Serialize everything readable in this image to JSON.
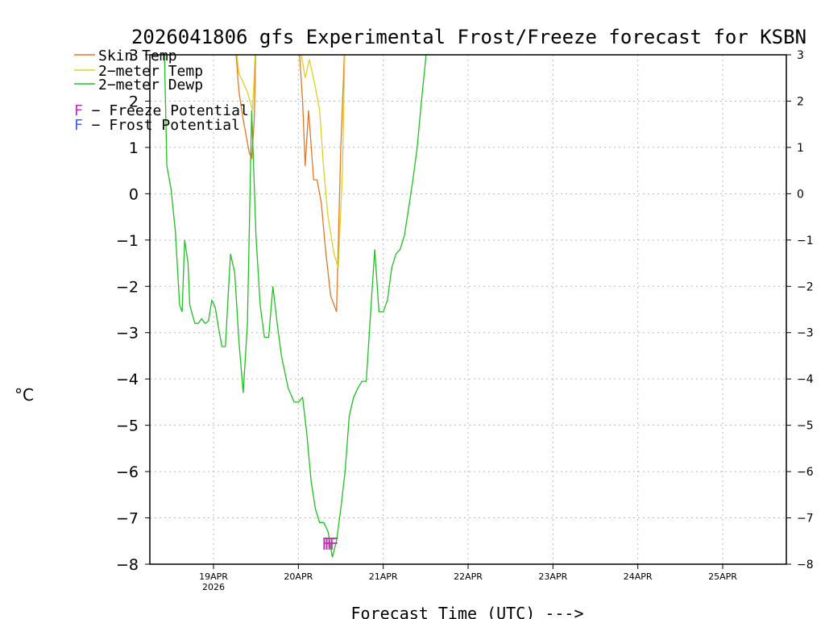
{
  "chart_data": {
    "type": "line",
    "title": "2026041806 gfs Experimental Frost/Freeze forecast for KSBN",
    "ylabel": "°C",
    "xlabel": "Forecast Time (UTC) --->",
    "ylim": [
      -8,
      3
    ],
    "xlim_days": [
      18.25,
      25.75
    ],
    "y_ticks": [
      3,
      2,
      1,
      0,
      -1,
      -2,
      -3,
      -4,
      -5,
      -6,
      -7,
      -8
    ],
    "y_tick_labels_left": [
      "3",
      "2",
      "1",
      "0",
      "−1",
      "−2",
      "−3",
      "−4",
      "−5",
      "−6",
      "−7",
      "−8"
    ],
    "y_tick_labels_right": [
      "3",
      "2",
      "1",
      "0",
      "−1",
      "−2",
      "−3",
      "−4",
      "−5",
      "−6",
      "−7",
      "−8"
    ],
    "x_ticks": [
      {
        "day": 19,
        "label": "19APR",
        "sublabel": "2026"
      },
      {
        "day": 20,
        "label": "20APR"
      },
      {
        "day": 21,
        "label": "21APR"
      },
      {
        "day": 22,
        "label": "22APR"
      },
      {
        "day": 23,
        "label": "23APR"
      },
      {
        "day": 24,
        "label": "24APR"
      },
      {
        "day": 25,
        "label": "25APR"
      }
    ],
    "grid": true,
    "series": [
      {
        "name": "Skin Temp",
        "color": "#e07828",
        "segments": [
          [
            [
              19.25,
              3.4
            ],
            [
              19.3,
              2.2
            ],
            [
              19.35,
              1.6
            ],
            [
              19.42,
              0.9
            ],
            [
              19.45,
              0.75
            ],
            [
              19.48,
              1.6
            ],
            [
              19.5,
              3.4
            ]
          ],
          [
            [
              20.0,
              3.4
            ],
            [
              20.05,
              2.0
            ],
            [
              20.08,
              0.6
            ],
            [
              20.12,
              1.8
            ],
            [
              20.18,
              0.3
            ],
            [
              20.22,
              0.3
            ],
            [
              20.27,
              -0.2
            ],
            [
              20.32,
              -1.2
            ],
            [
              20.38,
              -2.2
            ],
            [
              20.45,
              -2.55
            ],
            [
              20.5,
              1.0
            ],
            [
              20.55,
              3.4
            ]
          ]
        ]
      },
      {
        "name": "2-meter Temp",
        "color": "#ddd020",
        "segments": [
          [
            [
              19.25,
              3.4
            ],
            [
              19.3,
              2.6
            ],
            [
              19.4,
              2.2
            ],
            [
              19.46,
              1.8
            ],
            [
              19.5,
              3.4
            ]
          ],
          [
            [
              20.0,
              3.4
            ],
            [
              20.08,
              2.5
            ],
            [
              20.13,
              2.9
            ],
            [
              20.2,
              2.3
            ],
            [
              20.25,
              1.8
            ],
            [
              20.3,
              0.5
            ],
            [
              20.35,
              -0.5
            ],
            [
              20.42,
              -1.3
            ],
            [
              20.47,
              -1.6
            ],
            [
              20.52,
              0.5
            ],
            [
              20.55,
              3.4
            ]
          ]
        ]
      },
      {
        "name": "2-meter Dewp",
        "color": "#20c020",
        "segments": [
          [
            [
              18.42,
              3.2
            ],
            [
              18.44,
              1.5
            ],
            [
              18.45,
              0.6
            ],
            [
              18.5,
              0.1
            ],
            [
              18.55,
              -0.8
            ],
            [
              18.6,
              -2.4
            ],
            [
              18.63,
              -2.55
            ],
            [
              18.66,
              -1.0
            ],
            [
              18.7,
              -1.5
            ],
            [
              18.72,
              -2.4
            ],
            [
              18.78,
              -2.8
            ],
            [
              18.82,
              -2.8
            ],
            [
              18.86,
              -2.7
            ],
            [
              18.9,
              -2.8
            ],
            [
              18.94,
              -2.75
            ],
            [
              18.98,
              -2.3
            ],
            [
              19.02,
              -2.45
            ],
            [
              19.06,
              -2.9
            ],
            [
              19.1,
              -3.3
            ],
            [
              19.14,
              -3.3
            ],
            [
              19.2,
              -1.3
            ],
            [
              19.25,
              -1.7
            ],
            [
              19.3,
              -3.2
            ],
            [
              19.35,
              -4.3
            ],
            [
              19.4,
              -2.8
            ],
            [
              19.45,
              1.8
            ],
            [
              19.5,
              -0.9
            ],
            [
              19.55,
              -2.4
            ],
            [
              19.6,
              -3.1
            ],
            [
              19.65,
              -3.1
            ],
            [
              19.7,
              -2.0
            ],
            [
              19.75,
              -2.8
            ],
            [
              19.8,
              -3.5
            ],
            [
              19.88,
              -4.2
            ],
            [
              19.95,
              -4.5
            ],
            [
              20.0,
              -4.5
            ],
            [
              20.05,
              -4.4
            ],
            [
              20.1,
              -5.2
            ],
            [
              20.15,
              -6.2
            ],
            [
              20.2,
              -6.8
            ],
            [
              20.25,
              -7.1
            ],
            [
              20.3,
              -7.1
            ],
            [
              20.35,
              -7.3
            ],
            [
              20.4,
              -7.85
            ],
            [
              20.45,
              -7.5
            ],
            [
              20.5,
              -6.8
            ],
            [
              20.55,
              -6.0
            ],
            [
              20.6,
              -4.8
            ],
            [
              20.65,
              -4.4
            ],
            [
              20.7,
              -4.2
            ],
            [
              20.75,
              -4.05
            ],
            [
              20.8,
              -4.05
            ],
            [
              20.85,
              -2.6
            ],
            [
              20.9,
              -1.2
            ],
            [
              20.95,
              -2.55
            ],
            [
              21.0,
              -2.55
            ],
            [
              21.05,
              -2.3
            ],
            [
              21.1,
              -1.6
            ],
            [
              21.15,
              -1.3
            ],
            [
              21.2,
              -1.2
            ],
            [
              21.25,
              -0.9
            ],
            [
              21.3,
              -0.3
            ],
            [
              21.35,
              0.3
            ],
            [
              21.4,
              1.0
            ],
            [
              21.45,
              2.0
            ],
            [
              21.5,
              2.9
            ],
            [
              21.52,
              3.4
            ]
          ]
        ]
      }
    ],
    "freeze_markers": {
      "symbol": "F",
      "days": [
        20.33,
        20.36,
        20.39,
        20.42
      ],
      "value": -7.55,
      "color": "#c030b0"
    }
  },
  "legend": {
    "items": [
      {
        "label": "Skin Temp",
        "color": "#e07828"
      },
      {
        "label": "2−meter Temp",
        "color": "#ddd020"
      },
      {
        "label": "2−meter Dewp",
        "color": "#20c020"
      }
    ],
    "freeze": {
      "letter": "F",
      "text": " − Freeze Potential",
      "color": "#c030b0"
    },
    "frost": {
      "letter": "F",
      "text": " − Frost Potential",
      "color": "#4060e0"
    }
  }
}
